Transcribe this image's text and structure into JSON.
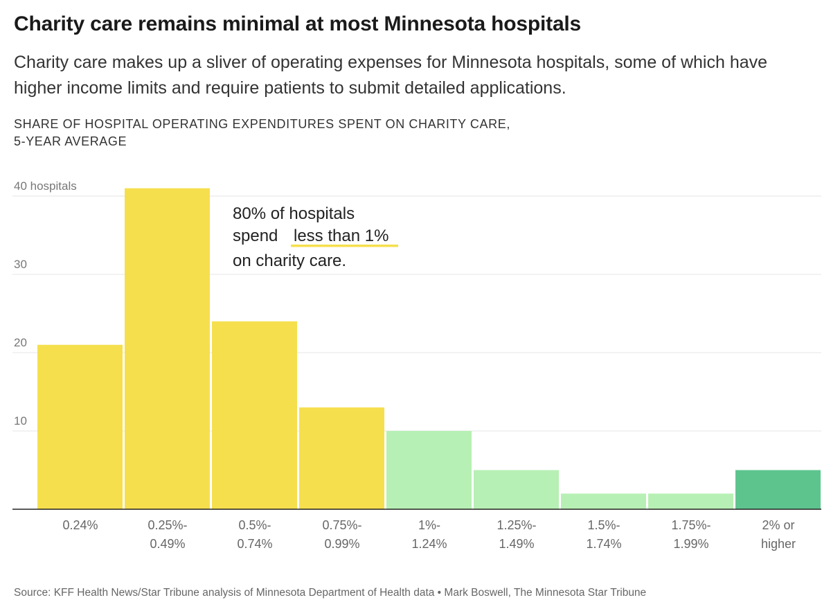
{
  "header": {
    "title": "Charity care remains minimal at most Minnesota hospitals",
    "subtitle": "Charity care makes up a sliver of operating expenses for Minnesota hospitals, some of which have higher income limits and require patients to submit detailed applications.",
    "chart_label_line1": "SHARE OF HOSPITAL OPERATING EXPENDITURES SPENT ON CHARITY CARE,",
    "chart_label_line2": "5-YEAR AVERAGE"
  },
  "chart_data": {
    "type": "bar",
    "categories": [
      [
        "0.24%"
      ],
      [
        "0.25%-",
        "0.49%"
      ],
      [
        "0.5%-",
        "0.74%"
      ],
      [
        "0.75%-",
        "0.99%"
      ],
      [
        "1%-",
        "1.24%"
      ],
      [
        "1.25%-",
        "1.49%"
      ],
      [
        "1.5%-",
        "1.74%"
      ],
      [
        "1.75%-",
        "1.99%"
      ],
      [
        "2% or",
        "higher"
      ]
    ],
    "values": [
      21,
      41,
      24,
      13,
      10,
      5,
      2,
      2,
      5
    ],
    "colors": [
      "#f5df4d",
      "#f5df4d",
      "#f5df4d",
      "#f5df4d",
      "#b7f0b4",
      "#b7f0b4",
      "#b7f0b4",
      "#b7f0b4",
      "#5ec48e"
    ],
    "ylim": [
      0,
      40
    ],
    "yticks": [
      {
        "value": 40,
        "label": "40 hospitals"
      },
      {
        "value": 30,
        "label": "30"
      },
      {
        "value": 20,
        "label": "20"
      },
      {
        "value": 10,
        "label": "10"
      }
    ],
    "grid": true,
    "annotation": {
      "line1": "80% of hospitals",
      "line2_prefix": "spend",
      "line2_highlight": "less than 1%",
      "line3": "on charity care.",
      "highlight_color": "#f5df4d"
    }
  },
  "footer": {
    "source": "Source: KFF Health News/Star Tribune analysis of Minnesota Department of Health data • Mark Boswell, The Minnesota Star Tribune"
  }
}
